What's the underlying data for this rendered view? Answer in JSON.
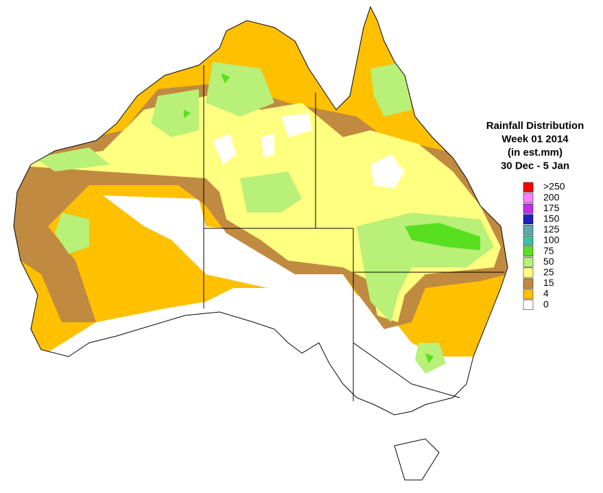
{
  "title": [
    "Rainfall Distribution",
    "Week 01 2014",
    "(in est.mm)",
    "30 Dec - 5 Jan"
  ],
  "legend": {
    "items": [
      {
        "label": ">250",
        "color": "#ff0000"
      },
      {
        "label": "200",
        "color": "#ff80ff"
      },
      {
        "label": "175",
        "color": "#c030e0"
      },
      {
        "label": "150",
        "color": "#2020c0"
      },
      {
        "label": "125",
        "color": "#60a8a8"
      },
      {
        "label": "100",
        "color": "#40c0a0"
      },
      {
        "label": "75",
        "color": "#58e020"
      },
      {
        "label": "50",
        "color": "#b8f078"
      },
      {
        "label": "25",
        "color": "#ffff80"
      },
      {
        "label": "15",
        "color": "#c08a40"
      },
      {
        "label": "4",
        "color": "#ffc000"
      },
      {
        "label": "0",
        "color": "#ffffff"
      }
    ]
  }
}
